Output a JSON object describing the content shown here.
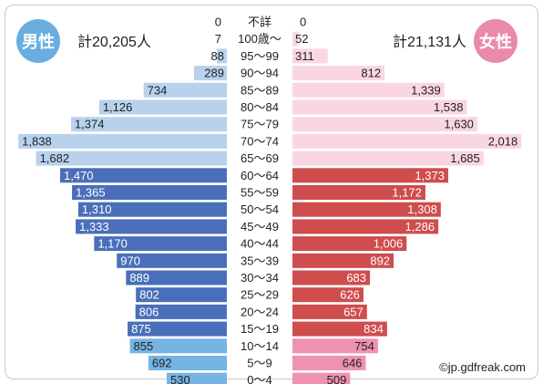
{
  "male": {
    "label": "男性",
    "total": "計20,205人",
    "badge_color": "#6aaee0"
  },
  "female": {
    "label": "女性",
    "total": "計21,131人",
    "badge_color": "#ea8aaa"
  },
  "credit": "©jp.gdfreak.com",
  "chart_data": {
    "type": "bar",
    "categories": [
      "不詳",
      "100歳～",
      "95～99",
      "90～94",
      "85～89",
      "80～84",
      "75～79",
      "70～74",
      "65～69",
      "60～64",
      "55～59",
      "50～54",
      "45～49",
      "40～44",
      "35～39",
      "30～34",
      "25～29",
      "20～24",
      "15～19",
      "10～14",
      "5～9",
      "0～4"
    ],
    "series": [
      {
        "name": "男性",
        "values": [
          0,
          7,
          88,
          289,
          734,
          1126,
          1374,
          1838,
          1682,
          1470,
          1365,
          1310,
          1333,
          1170,
          970,
          889,
          802,
          806,
          875,
          855,
          692,
          530
        ],
        "labels": [
          "0",
          "7",
          "88",
          "289",
          "734",
          "1,126",
          "1,374",
          "1,838",
          "1,682",
          "1,470",
          "1,365",
          "1,310",
          "1,333",
          "1,170",
          "970",
          "889",
          "802",
          "806",
          "875",
          "855",
          "692",
          "530"
        ]
      },
      {
        "name": "女性",
        "values": [
          0,
          52,
          311,
          812,
          1339,
          1538,
          1630,
          2018,
          1685,
          1373,
          1172,
          1308,
          1286,
          1006,
          892,
          683,
          626,
          657,
          834,
          754,
          646,
          509
        ],
        "labels": [
          "0",
          "52",
          "311",
          "812",
          "1,339",
          "1,538",
          "1,630",
          "2,018",
          "1,685",
          "1,373",
          "1,172",
          "1,308",
          "1,286",
          "1,006",
          "892",
          "683",
          "626",
          "657",
          "834",
          "754",
          "646",
          "509"
        ]
      }
    ],
    "colors": {
      "male_elderly": "#b8d2ee",
      "male_working": "#4a6fba",
      "male_young": "#76b4e4",
      "female_elderly": "#fad7e0",
      "female_working": "#cf4d4d",
      "female_young": "#ef91b1"
    },
    "groups": {
      "elderly": [
        "85～89",
        "80～84",
        "75～79",
        "70～74",
        "65～69"
      ],
      "working": [
        "60～64",
        "55～59",
        "50～54",
        "45～49",
        "40～44",
        "35～39",
        "30～34",
        "25～29",
        "20～24",
        "15～19"
      ],
      "young": [
        "10～14",
        "5～9",
        "0～4"
      ]
    }
  }
}
